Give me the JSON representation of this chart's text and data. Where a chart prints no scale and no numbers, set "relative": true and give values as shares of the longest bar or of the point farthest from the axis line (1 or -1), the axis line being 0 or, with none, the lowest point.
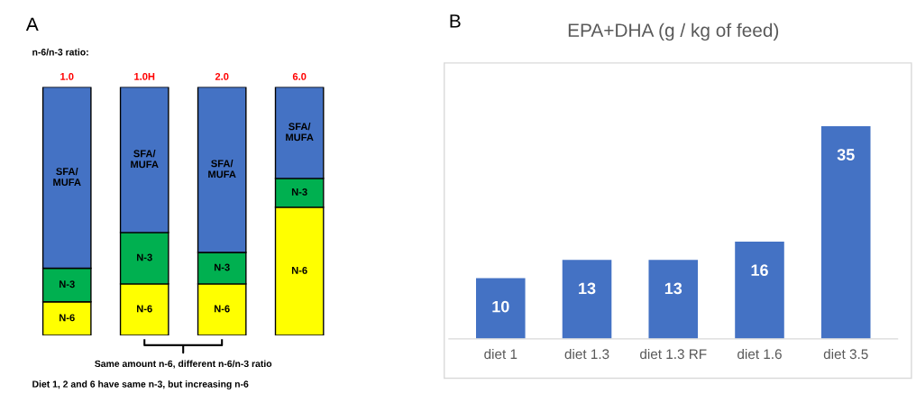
{
  "chart_data": [
    {
      "type": "bar",
      "title": "A",
      "relative": true,
      "stacked": true,
      "categories": [
        "1.0",
        "1.0H",
        "2.0",
        "6.0"
      ],
      "xlabel": "n-6/n-3 ratio:",
      "series": [
        {
          "name": "N-6",
          "color": "#ffff00",
          "values": [
            0.135,
            0.207,
            0.207,
            0.516
          ]
        },
        {
          "name": "N-3",
          "color": "#00b050",
          "values": [
            0.135,
            0.207,
            0.127,
            0.116
          ]
        },
        {
          "name": "SFA/\nMUFA",
          "color": "#4472c4",
          "values": [
            0.73,
            0.586,
            0.666,
            0.368
          ]
        }
      ],
      "annotations": [
        "Same amount n-6, different n-6/n-3 ratio",
        "Diet 1, 2 and 6 have same n-3, but increasing n-6"
      ],
      "legend": false
    },
    {
      "type": "bar",
      "title": "B",
      "subtitle": "EPA+DHA (g / kg of feed)",
      "categories": [
        "diet 1",
        "diet 1.3",
        "diet 1.3 RF",
        "diet 1.6",
        "diet 3.5"
      ],
      "values": [
        10,
        13,
        13,
        16,
        35
      ],
      "color": "#4472c4",
      "data_labels": true,
      "legend": false
    }
  ]
}
